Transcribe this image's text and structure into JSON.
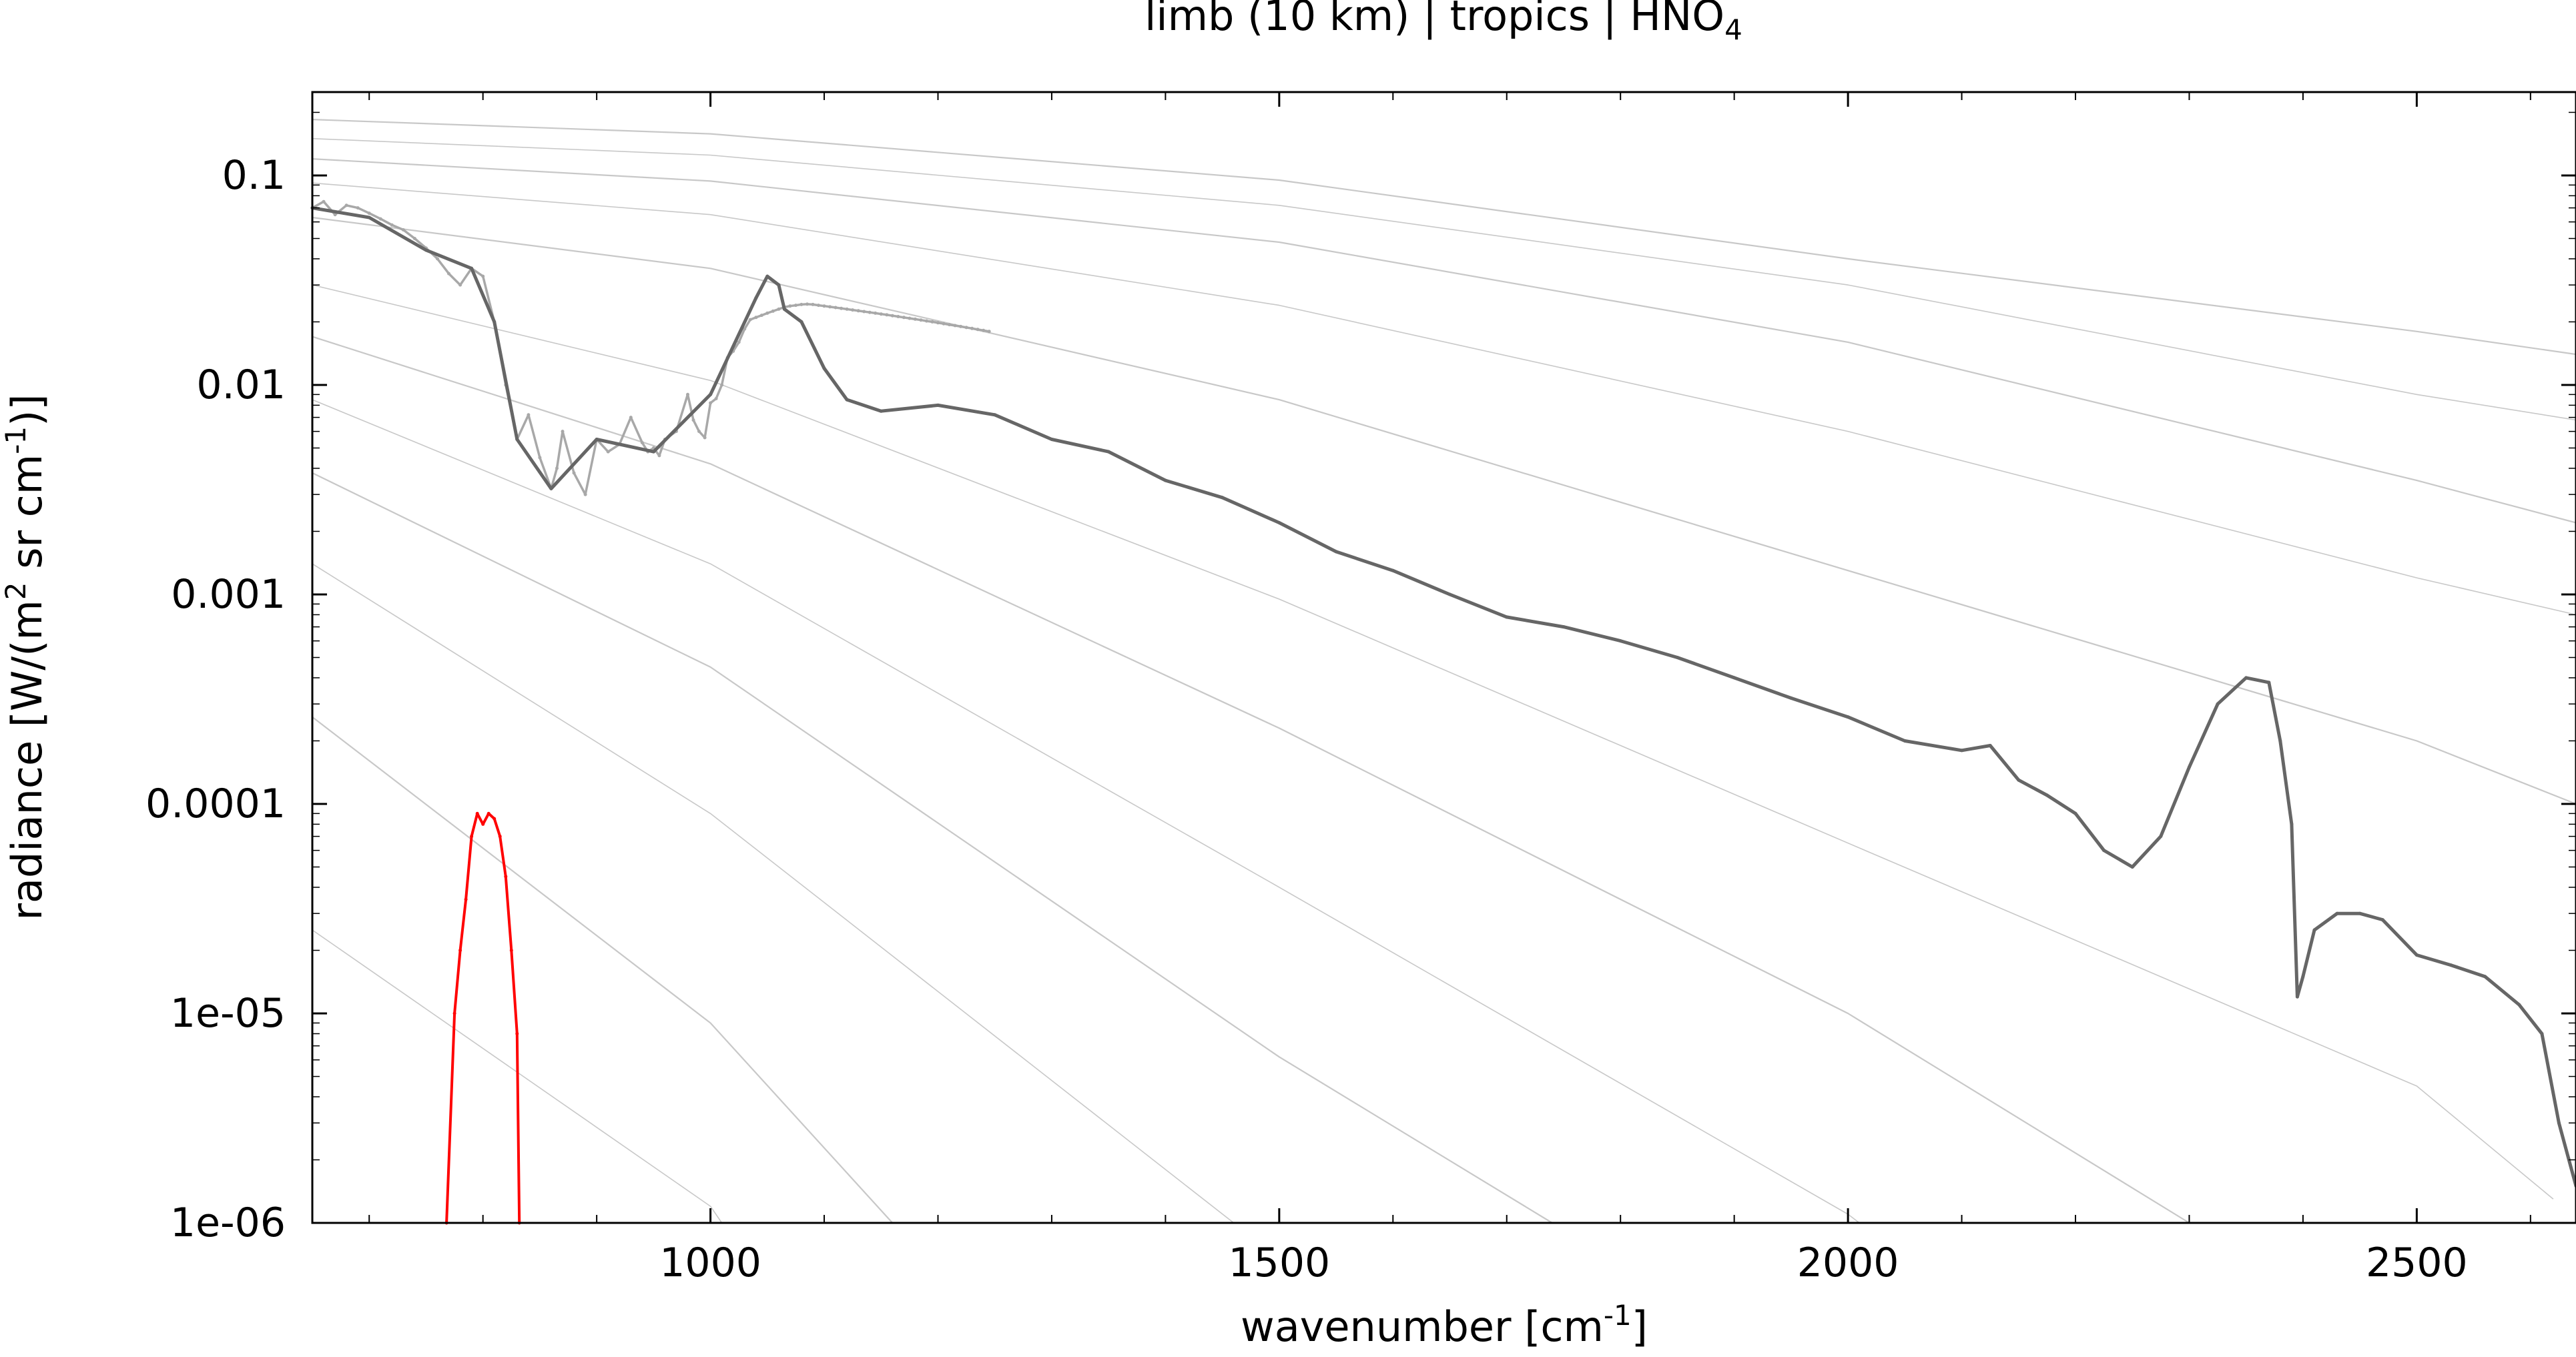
{
  "chart_data": {
    "type": "line",
    "title": {
      "text": "limb (10 km) | tropics | HNO",
      "subscript": "4"
    },
    "xlabel": {
      "text": "wavenumber [cm",
      "superscript": "-1",
      "suffix": "]"
    },
    "ylabel": {
      "prefix": "radiance [W/(m",
      "superscript_1": "2",
      "middle": " sr cm",
      "superscript_2": "-1",
      "suffix": ")]"
    },
    "xlim": [
      650,
      2640
    ],
    "ylim": [
      1e-06,
      0.25
    ],
    "y_scale": "log",
    "grid": false,
    "legend": "none",
    "x_ticks": [
      {
        "value": 1000,
        "label": "1000"
      },
      {
        "value": 1500,
        "label": "1500"
      },
      {
        "value": 2000,
        "label": "2000"
      },
      {
        "value": 2500,
        "label": "2500"
      }
    ],
    "y_ticks": [
      {
        "value": 0.1,
        "label": "0.1"
      },
      {
        "value": 0.01,
        "label": "0.01"
      },
      {
        "value": 0.001,
        "label": "0.001"
      },
      {
        "value": 0.0001,
        "label": "0.0001"
      },
      {
        "value": 1e-05,
        "label": "1e-05"
      },
      {
        "value": 1e-06,
        "label": "1e-06"
      }
    ],
    "colors": {
      "spectrum": "#666666",
      "spectrum_light": "#a8a8a8",
      "hno4_signal": "#ff0000",
      "reference_curves": "#c8c8c8"
    },
    "reference_curves": [
      {
        "values": [
          [
            650,
            0.185
          ],
          [
            1000,
            0.158
          ],
          [
            1500,
            0.095
          ],
          [
            2000,
            0.04
          ],
          [
            2500,
            0.018
          ],
          [
            2640,
            0.014
          ]
        ]
      },
      {
        "values": [
          [
            650,
            0.15
          ],
          [
            1000,
            0.125
          ],
          [
            1500,
            0.072
          ],
          [
            2000,
            0.03
          ],
          [
            2500,
            0.009
          ],
          [
            2640,
            0.0068
          ]
        ]
      },
      {
        "values": [
          [
            650,
            0.12
          ],
          [
            1000,
            0.094
          ],
          [
            1500,
            0.048
          ],
          [
            2000,
            0.016
          ],
          [
            2500,
            0.0035
          ],
          [
            2640,
            0.0022
          ]
        ]
      },
      {
        "values": [
          [
            650,
            0.092
          ],
          [
            1000,
            0.065
          ],
          [
            1500,
            0.024
          ],
          [
            2000,
            0.006
          ],
          [
            2500,
            0.0012
          ],
          [
            2640,
            0.0008
          ]
        ]
      },
      {
        "values": [
          [
            650,
            0.063
          ],
          [
            1000,
            0.036
          ],
          [
            1500,
            0.0085
          ],
          [
            2000,
            0.0013
          ],
          [
            2500,
            0.0002
          ],
          [
            2640,
            0.0001
          ]
        ]
      },
      {
        "values": [
          [
            650,
            0.03
          ],
          [
            1000,
            0.0105
          ],
          [
            1500,
            0.00095
          ],
          [
            2000,
            6.5e-05
          ],
          [
            2500,
            4.5e-06
          ],
          [
            2620,
            1.3e-06
          ]
        ]
      },
      {
        "values": [
          [
            650,
            0.017
          ],
          [
            1000,
            0.0042
          ],
          [
            1500,
            0.00023
          ],
          [
            2000,
            1e-05
          ],
          [
            2300,
            1e-06
          ]
        ]
      },
      {
        "values": [
          [
            650,
            0.0085
          ],
          [
            1000,
            0.0014
          ],
          [
            1500,
            4e-05
          ],
          [
            2000,
            1.1e-06
          ],
          [
            2010,
            1e-06
          ]
        ]
      },
      {
        "values": [
          [
            650,
            0.0038
          ],
          [
            1000,
            0.00045
          ],
          [
            1500,
            6.2e-06
          ],
          [
            1740,
            1e-06
          ]
        ]
      },
      {
        "values": [
          [
            650,
            0.0014
          ],
          [
            1000,
            9e-05
          ],
          [
            1460,
            1e-06
          ]
        ]
      },
      {
        "values": [
          [
            650,
            0.00026
          ],
          [
            1000,
            9e-06
          ],
          [
            1160,
            1e-06
          ]
        ]
      },
      {
        "values": [
          [
            650,
            2.5e-05
          ],
          [
            1000,
            1.2e-06
          ],
          [
            1010,
            1e-06
          ]
        ]
      }
    ],
    "series": [
      {
        "values": [
          [
            650,
            0.07
          ],
          [
            660,
            0.075
          ],
          [
            670,
            0.065
          ],
          [
            680,
            0.072
          ],
          [
            690,
            0.07
          ],
          [
            700,
            0.066
          ],
          [
            710,
            0.062
          ],
          [
            720,
            0.058
          ],
          [
            730,
            0.055
          ],
          [
            740,
            0.05
          ],
          [
            750,
            0.045
          ],
          [
            760,
            0.04
          ],
          [
            770,
            0.034
          ],
          [
            780,
            0.03
          ],
          [
            790,
            0.036
          ],
          [
            800,
            0.033
          ],
          [
            810,
            0.02
          ],
          [
            820,
            0.01
          ],
          [
            830,
            0.0055
          ],
          [
            840,
            0.0072
          ],
          [
            850,
            0.0045
          ],
          [
            860,
            0.0032
          ],
          [
            865,
            0.004
          ],
          [
            870,
            0.006
          ],
          [
            880,
            0.0038
          ],
          [
            890,
            0.003
          ],
          [
            900,
            0.0055
          ],
          [
            910,
            0.0048
          ],
          [
            920,
            0.0052
          ],
          [
            930,
            0.007
          ],
          [
            940,
            0.0053
          ],
          [
            945,
            0.0048
          ],
          [
            950,
            0.005
          ],
          [
            955,
            0.0046
          ],
          [
            960,
            0.0055
          ],
          [
            970,
            0.006
          ],
          [
            980,
            0.009
          ],
          [
            985,
            0.0068
          ],
          [
            990,
            0.006
          ],
          [
            995,
            0.0056
          ],
          [
            1000,
            0.0082
          ],
          [
            1005,
            0.0086
          ],
          [
            1010,
            0.01
          ],
          [
            1015,
            0.0135
          ],
          [
            1020,
            0.0145
          ],
          [
            1025,
            0.016
          ],
          [
            1030,
            0.0185
          ],
          [
            1035,
            0.0205
          ],
          [
            1040,
            0.021
          ],
          [
            1045,
            0.0215
          ],
          [
            1050,
            0.022
          ],
          [
            1055,
            0.0225
          ],
          [
            1060,
            0.023
          ],
          [
            1065,
            0.0235
          ],
          [
            1070,
            0.0238
          ],
          [
            1075,
            0.024
          ],
          [
            1080,
            0.0242
          ],
          [
            1085,
            0.0243
          ],
          [
            1090,
            0.0242
          ],
          [
            1095,
            0.024
          ],
          [
            1100,
            0.0238
          ],
          [
            1105,
            0.0236
          ],
          [
            1110,
            0.0234
          ],
          [
            1115,
            0.0232
          ],
          [
            1120,
            0.023
          ],
          [
            1125,
            0.0228
          ],
          [
            1130,
            0.0226
          ],
          [
            1135,
            0.0224
          ],
          [
            1140,
            0.0222
          ],
          [
            1145,
            0.022
          ],
          [
            1150,
            0.0218
          ],
          [
            1155,
            0.0216
          ],
          [
            1160,
            0.0214
          ],
          [
            1165,
            0.0212
          ],
          [
            1170,
            0.021
          ],
          [
            1175,
            0.0208
          ],
          [
            1180,
            0.0206
          ],
          [
            1185,
            0.0204
          ],
          [
            1190,
            0.0202
          ],
          [
            1195,
            0.02
          ],
          [
            1200,
            0.0198
          ],
          [
            1205,
            0.0196
          ],
          [
            1210,
            0.0194
          ],
          [
            1215,
            0.0192
          ],
          [
            1220,
            0.019
          ],
          [
            1225,
            0.0188
          ],
          [
            1230,
            0.0186
          ],
          [
            1235,
            0.0184
          ],
          [
            1240,
            0.0182
          ],
          [
            1245,
            0.018
          ]
        ]
      },
      {
        "values": [
          [
            650,
            0.07
          ],
          [
            700,
            0.063
          ],
          [
            750,
            0.044
          ],
          [
            790,
            0.036
          ],
          [
            810,
            0.02
          ],
          [
            830,
            0.0055
          ],
          [
            860,
            0.0032
          ],
          [
            900,
            0.0055
          ],
          [
            950,
            0.0048
          ],
          [
            1000,
            0.009
          ],
          [
            1040,
            0.026
          ],
          [
            1050,
            0.033
          ],
          [
            1060,
            0.03
          ],
          [
            1065,
            0.023
          ],
          [
            1080,
            0.02
          ],
          [
            1100,
            0.012
          ],
          [
            1120,
            0.0085
          ],
          [
            1150,
            0.0075
          ],
          [
            1200,
            0.008
          ],
          [
            1250,
            0.0072
          ],
          [
            1300,
            0.0055
          ],
          [
            1350,
            0.0048
          ],
          [
            1400,
            0.0035
          ],
          [
            1450,
            0.0029
          ],
          [
            1500,
            0.0022
          ],
          [
            1550,
            0.0016
          ],
          [
            1600,
            0.0013
          ],
          [
            1650,
            0.001
          ],
          [
            1700,
            0.00078
          ],
          [
            1750,
            0.0007
          ],
          [
            1800,
            0.0006
          ],
          [
            1850,
            0.0005
          ],
          [
            1900,
            0.0004
          ],
          [
            1950,
            0.00032
          ],
          [
            2000,
            0.00026
          ],
          [
            2050,
            0.0002
          ],
          [
            2100,
            0.00018
          ],
          [
            2125,
            0.00019
          ],
          [
            2150,
            0.00013
          ],
          [
            2175,
            0.00011
          ],
          [
            2200,
            9e-05
          ],
          [
            2225,
            6e-05
          ],
          [
            2250,
            5e-05
          ],
          [
            2275,
            7e-05
          ],
          [
            2300,
            0.00015
          ],
          [
            2325,
            0.0003
          ],
          [
            2350,
            0.0004
          ],
          [
            2370,
            0.00038
          ],
          [
            2380,
            0.0002
          ],
          [
            2390,
            8e-05
          ],
          [
            2395,
            1.2e-05
          ],
          [
            2400,
            1.5e-05
          ],
          [
            2410,
            2.5e-05
          ],
          [
            2430,
            3e-05
          ],
          [
            2450,
            3e-05
          ],
          [
            2470,
            2.8e-05
          ],
          [
            2500,
            1.9e-05
          ],
          [
            2530,
            1.7e-05
          ],
          [
            2560,
            1.5e-05
          ],
          [
            2590,
            1.1e-05
          ],
          [
            2610,
            8e-06
          ],
          [
            2625,
            3e-06
          ],
          [
            2640,
            1.5e-06
          ]
        ]
      },
      {
        "values": [
          [
            768,
            1e-06
          ],
          [
            775,
            1e-05
          ],
          [
            780,
            2e-05
          ],
          [
            785,
            3.5e-05
          ],
          [
            790,
            7e-05
          ],
          [
            795,
            9e-05
          ],
          [
            800,
            8e-05
          ],
          [
            805,
            9e-05
          ],
          [
            810,
            8.5e-05
          ],
          [
            815,
            7e-05
          ],
          [
            820,
            4.5e-05
          ],
          [
            825,
            2e-05
          ],
          [
            830,
            8e-06
          ],
          [
            832,
            1e-06
          ]
        ]
      }
    ]
  }
}
